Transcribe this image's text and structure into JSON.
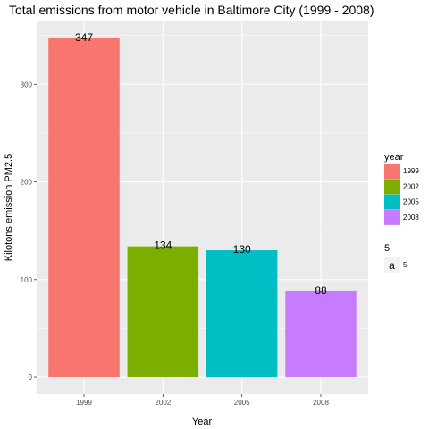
{
  "chart_data": {
    "type": "bar",
    "title": "Total emissions from motor vehicle in Baltimore City (1999 - 2008)",
    "xlabel": "Year",
    "ylabel": "Kilotons emission PM2.5",
    "categories": [
      "1999",
      "2002",
      "2005",
      "2008"
    ],
    "values": [
      347,
      134,
      130,
      88
    ],
    "data_labels": [
      "347",
      "134",
      "130",
      "88"
    ],
    "colors": [
      "#F8766D",
      "#7CAE00",
      "#00BFC4",
      "#C77CFF"
    ],
    "ylim": [
      -17.35,
      364.35
    ],
    "y_ticks": [
      0,
      100,
      200,
      300
    ],
    "y_tick_labels": [
      "0",
      "100",
      "200",
      "300"
    ],
    "grid": true,
    "panel_background": "#EBEBEB",
    "legend": {
      "placement": "right",
      "fill_title": "year",
      "fill_entries": [
        "1999",
        "2002",
        "2005",
        "2008"
      ],
      "size_title": "5",
      "size_entry_key": "a",
      "size_entry_label": "5"
    }
  }
}
